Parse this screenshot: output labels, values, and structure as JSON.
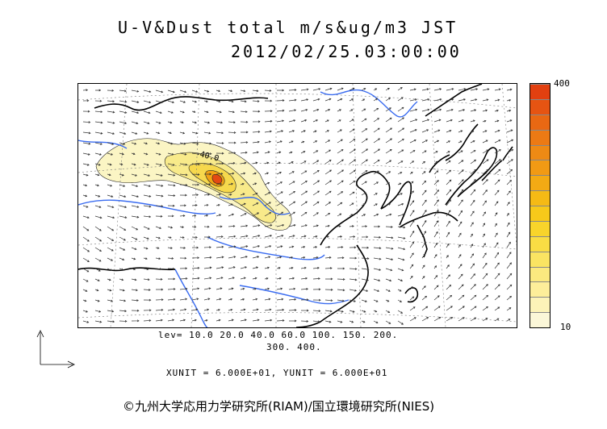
{
  "title": {
    "line1": "U-V&Dust total m/s&ug/m3 JST",
    "line2": "2012/02/25.03:00:00"
  },
  "map": {
    "region": "East Asia",
    "contour_label": "40.0",
    "colors": {
      "land_line": "#000000",
      "river": "#3a6cf0",
      "grid": "#777777",
      "vector": "#333333"
    }
  },
  "colorbar": {
    "max_label": "400",
    "min_label": "10",
    "colors": [
      "#fbf7d8",
      "#fcf3b8",
      "#fdee9a",
      "#fbe97f",
      "#fae462",
      "#f9dd44",
      "#f8d42b",
      "#f7c91a",
      "#f5ba15",
      "#f3aa14",
      "#f19a14",
      "#ee8a14",
      "#ec7a14",
      "#e96813",
      "#e65412",
      "#e24010"
    ]
  },
  "levels": {
    "line1": "lev= 10.0 20.0 40.0 60.0 100. 150. 200.",
    "line2": "300. 400."
  },
  "units": {
    "text": "XUNIT = 6.000E+01, YUNIT = 6.000E+01"
  },
  "credit": {
    "text": "©九州大学応用力学研究所(RIAM)/国立環境研究所(NIES)"
  }
}
